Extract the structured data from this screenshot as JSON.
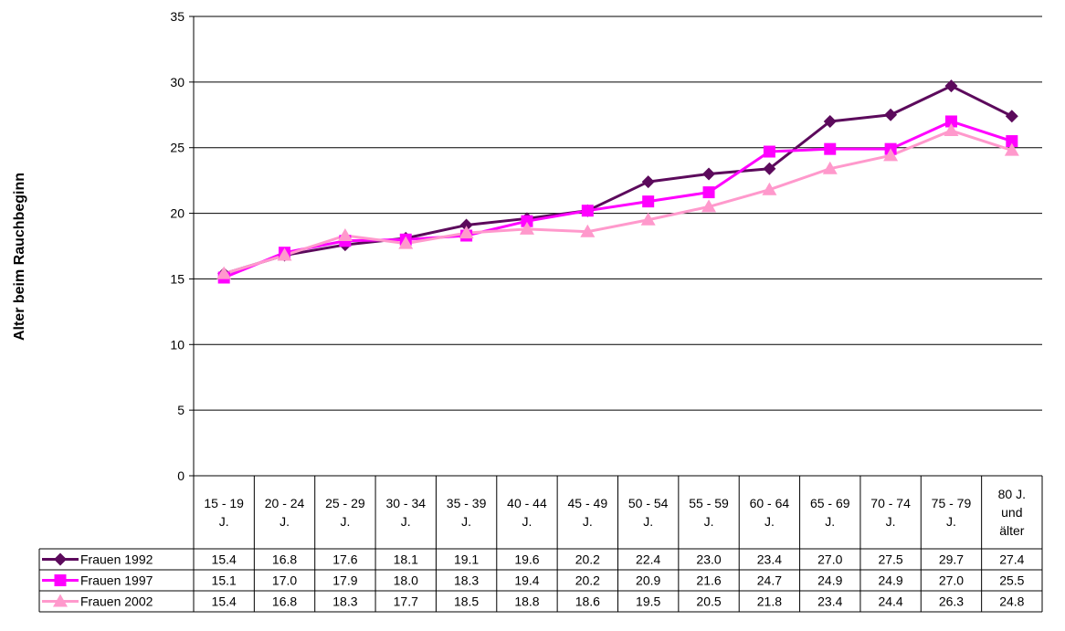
{
  "chart_data": {
    "type": "line",
    "title": "",
    "xlabel": "",
    "ylabel": "Alter beim Rauchbeginn",
    "ylim": [
      0,
      35
    ],
    "yticks": [
      0,
      5,
      10,
      15,
      20,
      25,
      30,
      35
    ],
    "grid": true,
    "legend": "data-table-left",
    "categories": [
      [
        "15 - 19",
        "J."
      ],
      [
        "20 - 24",
        "J."
      ],
      [
        "25 - 29",
        "J."
      ],
      [
        "30 - 34",
        "J."
      ],
      [
        "35 - 39",
        "J."
      ],
      [
        "40 - 44",
        "J."
      ],
      [
        "45 - 49",
        "J."
      ],
      [
        "50 - 54",
        "J."
      ],
      [
        "55 - 59",
        "J."
      ],
      [
        "60 - 64",
        "J."
      ],
      [
        "65 - 69",
        "J."
      ],
      [
        "70 - 74",
        "J."
      ],
      [
        "75 - 79",
        "J."
      ],
      [
        "80 J.",
        "und",
        "älter"
      ]
    ],
    "series": [
      {
        "name": "Frauen 1992",
        "color": "#5c0a5c",
        "marker": "diamond",
        "values": [
          15.4,
          16.8,
          17.6,
          18.1,
          19.1,
          19.6,
          20.2,
          22.4,
          23.0,
          23.4,
          27.0,
          27.5,
          29.7,
          27.4
        ],
        "labels": [
          "15.4",
          "16.8",
          "17.6",
          "18.1",
          "19.1",
          "19.6",
          "20.2",
          "22.4",
          "23.0",
          "23.4",
          "27.0",
          "27.5",
          "29.7",
          "27.4"
        ]
      },
      {
        "name": "Frauen 1997",
        "color": "#ff00ff",
        "marker": "square",
        "values": [
          15.1,
          17.0,
          17.9,
          18.0,
          18.3,
          19.4,
          20.2,
          20.9,
          21.6,
          24.7,
          24.9,
          24.9,
          27.0,
          25.5
        ],
        "labels": [
          "15.1",
          "17.0",
          "17.9",
          "18.0",
          "18.3",
          "19.4",
          "20.2",
          "20.9",
          "21.6",
          "24.7",
          "24.9",
          "24.9",
          "27.0",
          "25.5"
        ]
      },
      {
        "name": "Frauen 2002",
        "color": "#ff99cc",
        "marker": "triangle",
        "values": [
          15.4,
          16.8,
          18.3,
          17.7,
          18.5,
          18.8,
          18.6,
          19.5,
          20.5,
          21.8,
          23.4,
          24.4,
          26.3,
          24.8
        ],
        "labels": [
          "15.4",
          "16.8",
          "18.3",
          "17.7",
          "18.5",
          "18.8",
          "18.6",
          "19.5",
          "20.5",
          "21.8",
          "23.4",
          "24.4",
          "26.3",
          "24.8"
        ]
      }
    ]
  }
}
